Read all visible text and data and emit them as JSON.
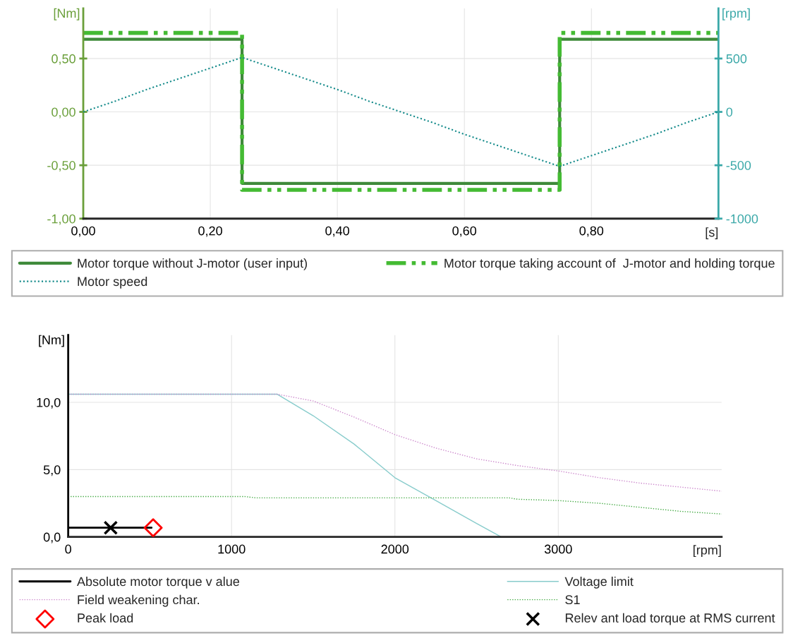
{
  "chart_data": [
    {
      "type": "line",
      "xlabel": "[s]",
      "ylabel": "[Nm]",
      "y2label": "[rpm]",
      "xlim": [
        0,
        1
      ],
      "ylim": [
        -1,
        0.97
      ],
      "y2lim": [
        -1000,
        970
      ],
      "xticks": [
        {
          "value": 0,
          "label": "0,00"
        },
        {
          "value": 0.2,
          "label": "0,20"
        },
        {
          "value": 0.4,
          "label": "0,40"
        },
        {
          "value": 0.6,
          "label": "0,60"
        },
        {
          "value": 0.8,
          "label": "0,80"
        }
      ],
      "yticks": [
        {
          "value": -1,
          "label": "-1,00"
        },
        {
          "value": -0.5,
          "label": "-0,50"
        },
        {
          "value": 0,
          "label": "0,00"
        },
        {
          "value": 0.5,
          "label": "0,50"
        }
      ],
      "y2ticks": [
        -1000,
        -500,
        0,
        500
      ],
      "grid": true,
      "legend": "bottom",
      "series": [
        {
          "name": "Motor torque without J-motor (user input)",
          "color": "#3f8a3a",
          "line_style": "solid",
          "x": [
            0,
            0.25,
            0.25,
            0.75,
            0.75,
            1.0
          ],
          "values": [
            0.68,
            0.68,
            -0.67,
            -0.67,
            0.68,
            0.68
          ]
        },
        {
          "name": "Motor torque taking account of  J-motor and holding torque",
          "color": "#44bb33",
          "line_style": "dashdot",
          "x": [
            0,
            0.25,
            0.25,
            0.75,
            0.75,
            1.0
          ],
          "values": [
            0.74,
            0.74,
            -0.73,
            -0.73,
            0.74,
            0.74
          ]
        },
        {
          "name": "Motor speed",
          "color": "#138a8a",
          "line_style": "dotted",
          "axis": "y2",
          "x": [
            0,
            0.05,
            0.1,
            0.15,
            0.2,
            0.25,
            0.3,
            0.35,
            0.4,
            0.45,
            0.5,
            0.55,
            0.6,
            0.65,
            0.7,
            0.75,
            0.8,
            0.85,
            0.9,
            0.95,
            1.0
          ],
          "values": [
            0,
            100,
            210,
            310,
            410,
            510,
            410,
            310,
            210,
            100,
            0,
            -100,
            -210,
            -310,
            -410,
            -510,
            -410,
            -310,
            -210,
            -100,
            0
          ]
        }
      ]
    },
    {
      "type": "line",
      "xlabel": "[rpm]",
      "ylabel": "[Nm]",
      "xlim": [
        0,
        4000
      ],
      "ylim": [
        0,
        15
      ],
      "xticks": [
        0,
        1000,
        2000,
        3000
      ],
      "yticks": [
        {
          "value": 0,
          "label": "0,0"
        },
        {
          "value": 5,
          "label": "5,0"
        },
        {
          "value": 10,
          "label": "10,0"
        }
      ],
      "grid": true,
      "legend": "bottom",
      "series": [
        {
          "name": "Absolute motor torque v alue",
          "color": "#000000",
          "line_style": "solid",
          "x": [
            0,
            510
          ],
          "values": [
            0.68,
            0.68
          ]
        },
        {
          "name": "Voltage limit",
          "color": "#88cccc",
          "line_style": "solid",
          "x": [
            0,
            1280,
            1500,
            1750,
            2000,
            2250,
            2500,
            2650
          ],
          "values": [
            10.6,
            10.6,
            9.0,
            6.9,
            4.4,
            2.7,
            1.0,
            0
          ]
        },
        {
          "name": "Field weakening char.",
          "color": "#cc88cc",
          "line_style": "dotted",
          "x": [
            0,
            1280,
            1500,
            1750,
            2000,
            2250,
            2500,
            2750,
            3000,
            3250,
            3500,
            3750,
            4000
          ],
          "values": [
            10.6,
            10.6,
            10.1,
            8.9,
            7.6,
            6.6,
            5.8,
            5.3,
            4.9,
            4.4,
            4.0,
            3.7,
            3.4
          ]
        },
        {
          "name": "S1",
          "color": "#44aa44",
          "line_style": "dotted",
          "x": [
            0,
            1080,
            1150,
            2700,
            2750,
            3000,
            3250,
            3500,
            3750,
            4000
          ],
          "values": [
            3.0,
            3.0,
            2.9,
            2.9,
            2.8,
            2.7,
            2.5,
            2.2,
            1.9,
            1.7
          ]
        },
        {
          "name": "Peak load",
          "type": "scatter",
          "marker": "diamond",
          "color": "#ff0000",
          "x": [
            520
          ],
          "values": [
            0.68
          ]
        },
        {
          "name": "Relev ant load torque at RMS current",
          "type": "scatter",
          "marker": "cross",
          "color": "#000000",
          "x": [
            260
          ],
          "values": [
            0.68
          ]
        }
      ]
    }
  ]
}
